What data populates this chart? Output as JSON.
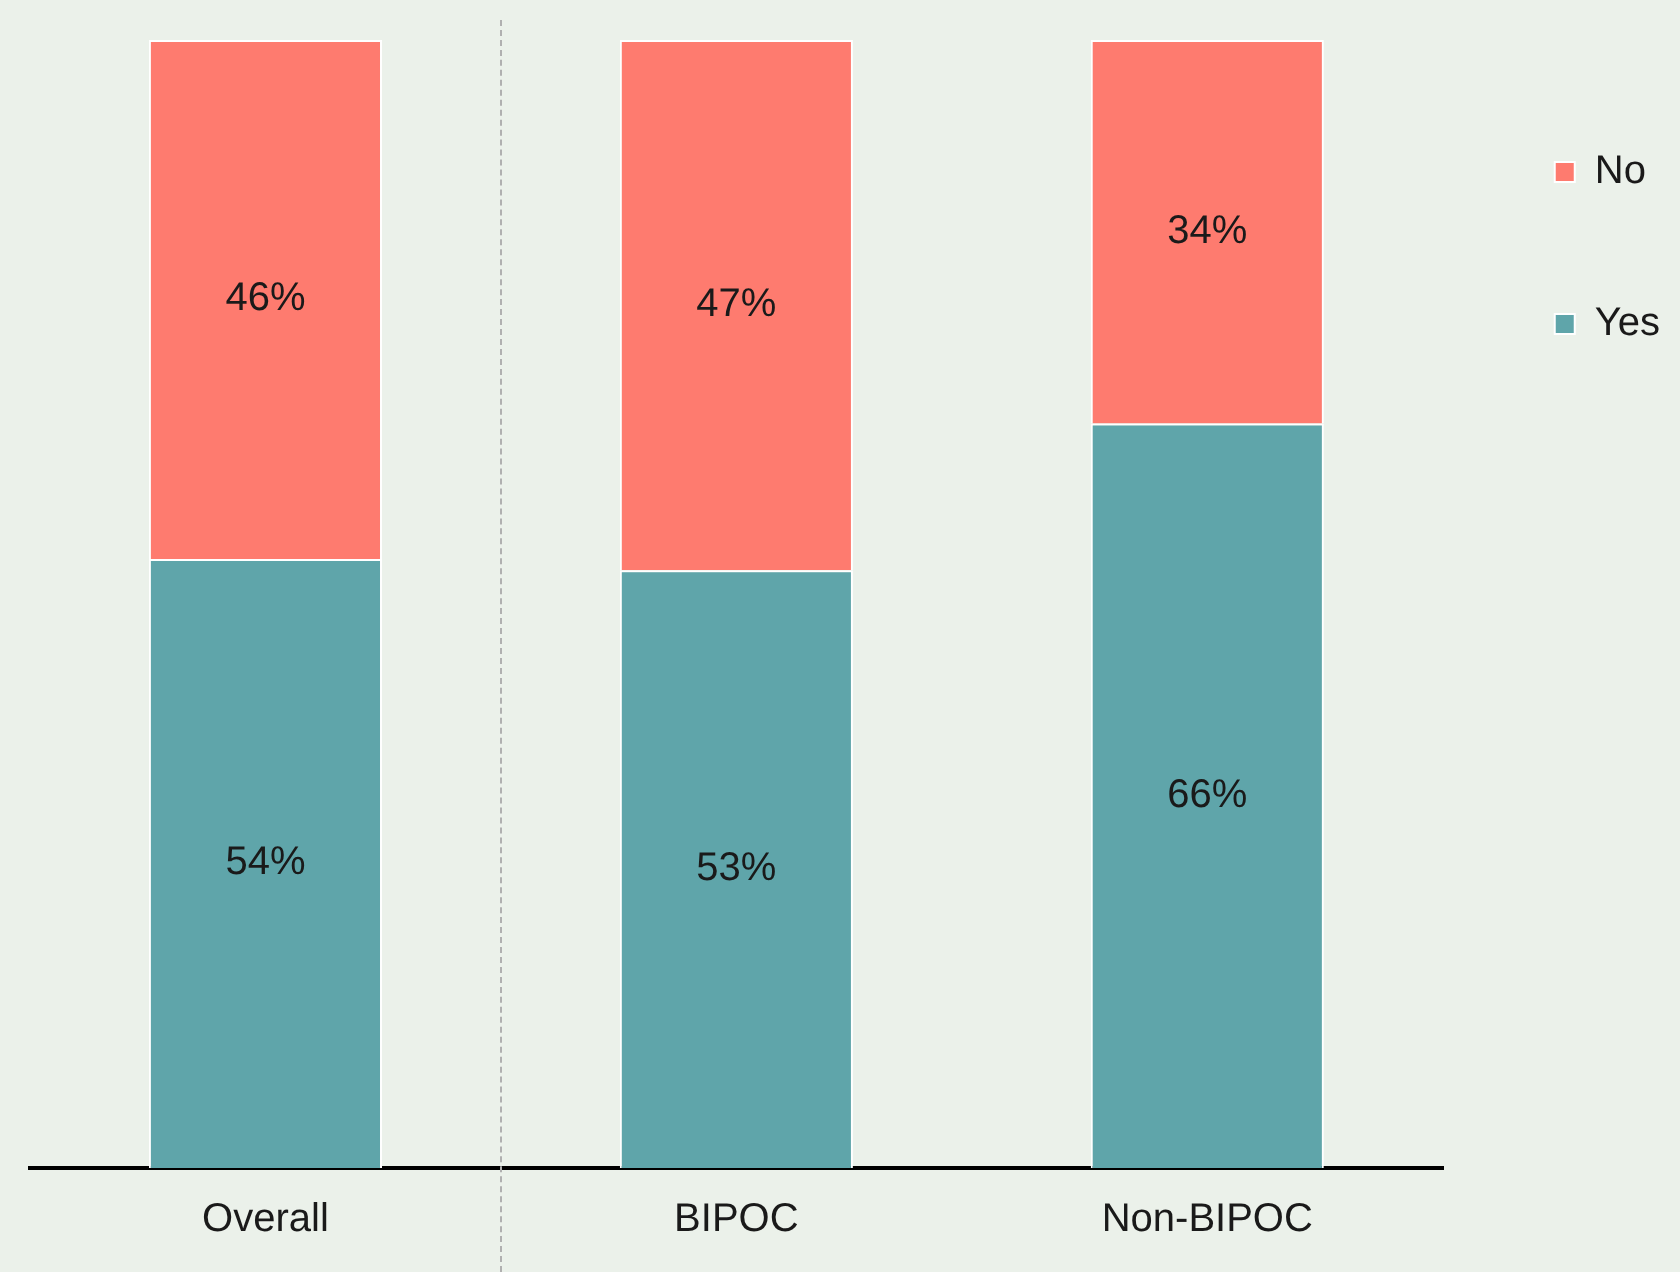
{
  "chart_data": {
    "type": "bar",
    "stacked": true,
    "categories": [
      "Overall",
      "BIPOC",
      "Non-BIPOC"
    ],
    "series": [
      {
        "name": "Yes",
        "color": "#5fa5aa",
        "values": [
          54,
          53,
          66
        ],
        "value_labels": [
          "54%",
          "53%",
          "66%"
        ]
      },
      {
        "name": "No",
        "color": "#fe7b6f",
        "values": [
          46,
          47,
          34
        ],
        "value_labels": [
          "46%",
          "47%",
          "34%"
        ]
      }
    ],
    "legend": "right",
    "grid": false,
    "tick_labels": "x"
  }
}
